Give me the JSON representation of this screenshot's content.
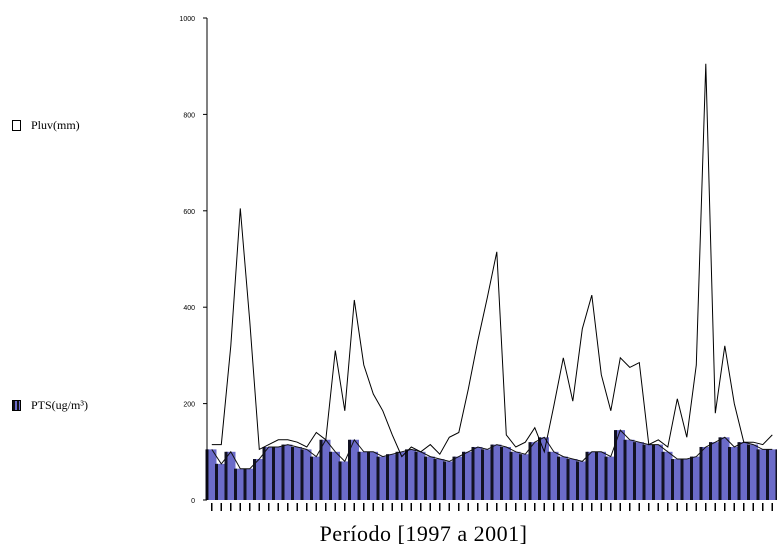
{
  "legend": {
    "pluv_label": "Pluv(mm)",
    "pts_label": "PTS(ug/m³)"
  },
  "chart_data": {
    "type": "bar",
    "xlabel": "Período [1997 a 2001]",
    "ylim": [
      0,
      1000
    ],
    "yticks": [
      0,
      200,
      400,
      600,
      800,
      1000
    ],
    "series": [
      {
        "name": "Pluv(mm)",
        "type": "line",
        "color": "#000000",
        "values": [
          115,
          115,
          320,
          605,
          370,
          105,
          115,
          125,
          125,
          120,
          110,
          140,
          125,
          310,
          185,
          415,
          280,
          220,
          185,
          135,
          90,
          110,
          100,
          115,
          95,
          130,
          140,
          230,
          330,
          420,
          515,
          135,
          110,
          120,
          150,
          100,
          195,
          295,
          205,
          355,
          425,
          260,
          185,
          295,
          275,
          285,
          115,
          125,
          110,
          210,
          130,
          280,
          905,
          180,
          320,
          200,
          120,
          120,
          115,
          135
        ]
      },
      {
        "name": "PTS(ug/m³)",
        "type": "bar",
        "color": "#6b6bc9",
        "values": [
          105,
          75,
          100,
          65,
          65,
          85,
          110,
          110,
          115,
          110,
          105,
          90,
          125,
          100,
          80,
          125,
          100,
          100,
          90,
          95,
          100,
          105,
          100,
          90,
          85,
          80,
          90,
          100,
          110,
          105,
          115,
          110,
          100,
          95,
          120,
          130,
          100,
          90,
          85,
          80,
          100,
          100,
          90,
          145,
          125,
          120,
          115,
          115,
          100,
          85,
          85,
          90,
          110,
          120,
          130,
          110,
          120,
          115,
          105,
          105
        ]
      }
    ]
  }
}
